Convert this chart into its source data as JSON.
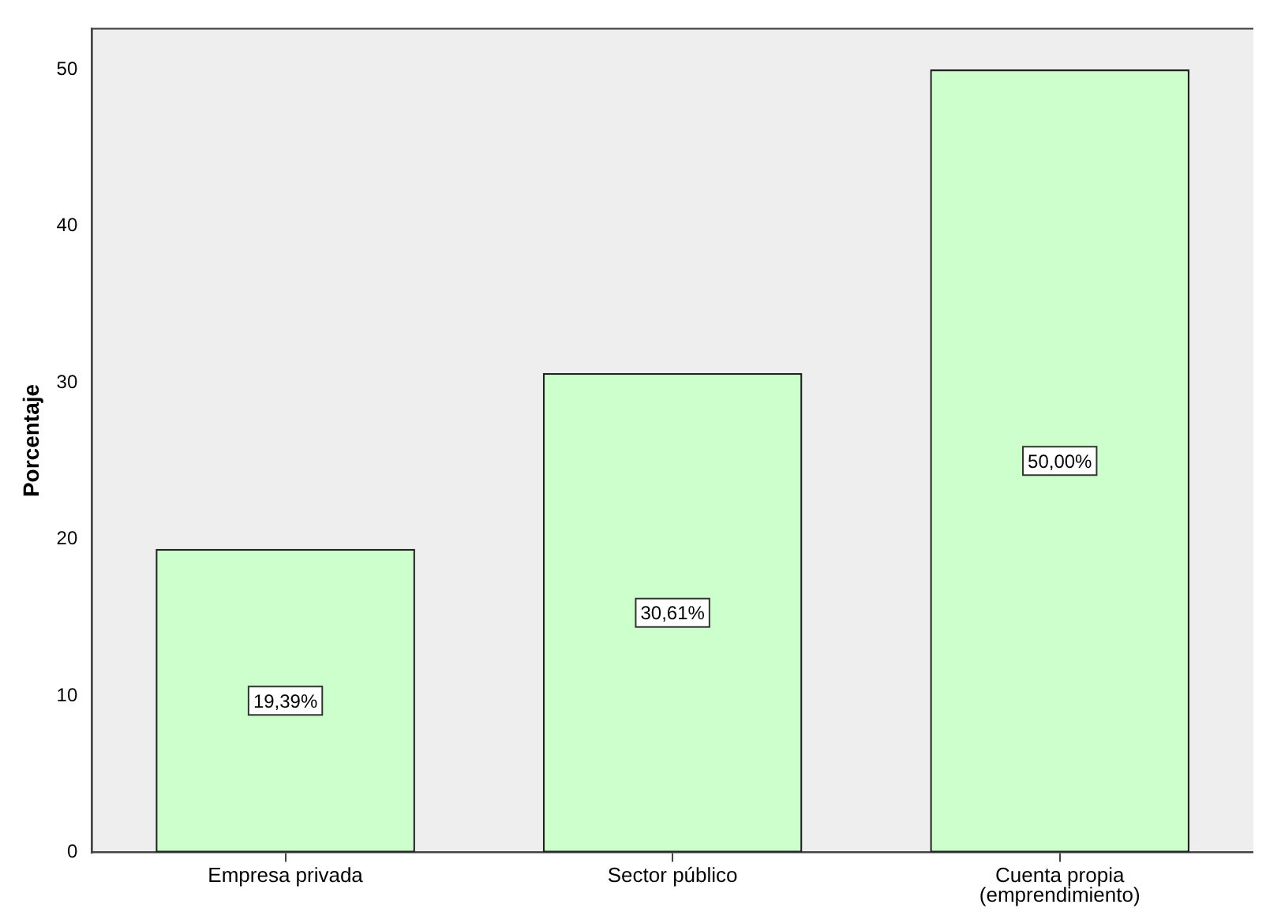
{
  "chart_data": {
    "type": "bar",
    "ylabel": "Porcentaje",
    "categories": [
      "Empresa privada",
      "Sector público",
      "Cuenta propia\n(emprendimiento)"
    ],
    "values": [
      19.39,
      30.61,
      50
    ],
    "value_labels": [
      "19,39%",
      "30,61%",
      "50,00%"
    ],
    "color": "#ccffcc",
    "ylim": [
      0,
      52.6
    ],
    "yticks": [
      0,
      10,
      20,
      30,
      40,
      50
    ],
    "grid": false,
    "legend": false
  }
}
